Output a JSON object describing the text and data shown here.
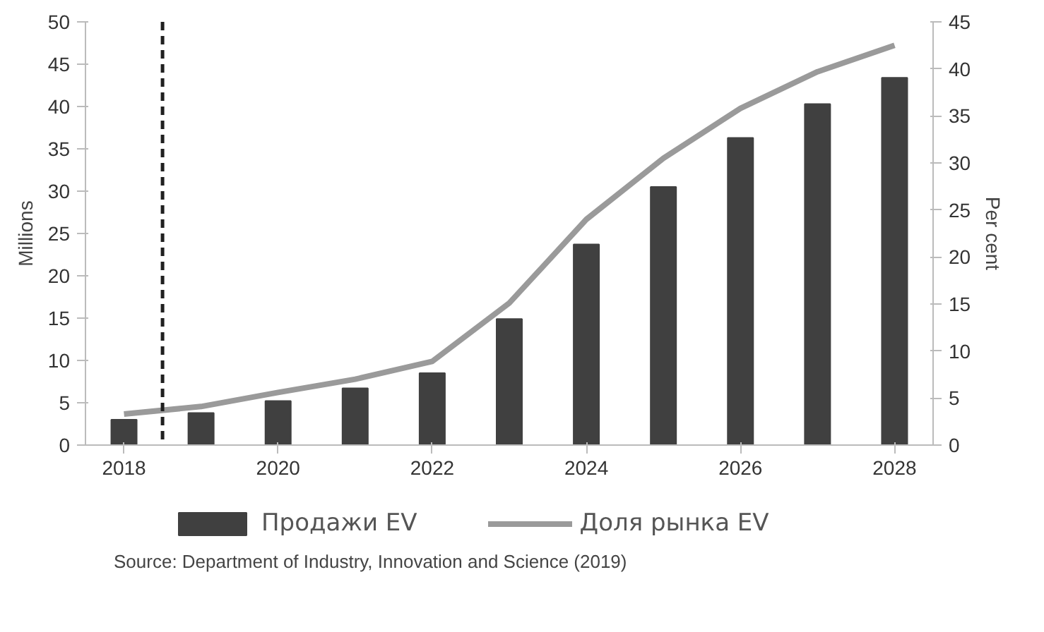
{
  "chart_data": {
    "type": "bar",
    "ylabel": "Millions",
    "y2label": "Per cent",
    "x": [
      2018,
      2019,
      2020,
      2021,
      2022,
      2023,
      2024,
      2025,
      2026,
      2027,
      2028
    ],
    "series": [
      {
        "name": "Продажи EV",
        "color": "#404040",
        "values": [
          3.0,
          3.8,
          5.2,
          6.7,
          8.5,
          14.9,
          23.7,
          30.5,
          36.3,
          40.3,
          43.4
        ]
      },
      {
        "name": "Доля рынка EV",
        "type": "line",
        "axis": "y2",
        "color": "#9a9a9a",
        "values": [
          3.3,
          4.1,
          5.6,
          7.0,
          8.9,
          15.1,
          24.0,
          30.5,
          35.8,
          39.7,
          42.5
        ]
      }
    ],
    "xlim": [
      2017.5,
      2028.5
    ],
    "xticks": [
      2018,
      2020,
      2022,
      2024,
      2026,
      2028
    ],
    "ylim": [
      0,
      50
    ],
    "yticks": [
      0,
      5,
      10,
      15,
      20,
      25,
      30,
      35,
      40,
      45,
      50
    ],
    "y2lim": [
      0,
      45
    ],
    "y2ticks": [
      0,
      5,
      10,
      15,
      20,
      25,
      30,
      35,
      40,
      45
    ],
    "ref_lines": [
      {
        "axis": "x",
        "value": 2018.5,
        "color": "#202020",
        "line_style": "dashed"
      }
    ],
    "grid": false,
    "legend": "bottom",
    "annotations": [
      "Source: Department of Industry, Innovation and Science (2019)"
    ]
  }
}
